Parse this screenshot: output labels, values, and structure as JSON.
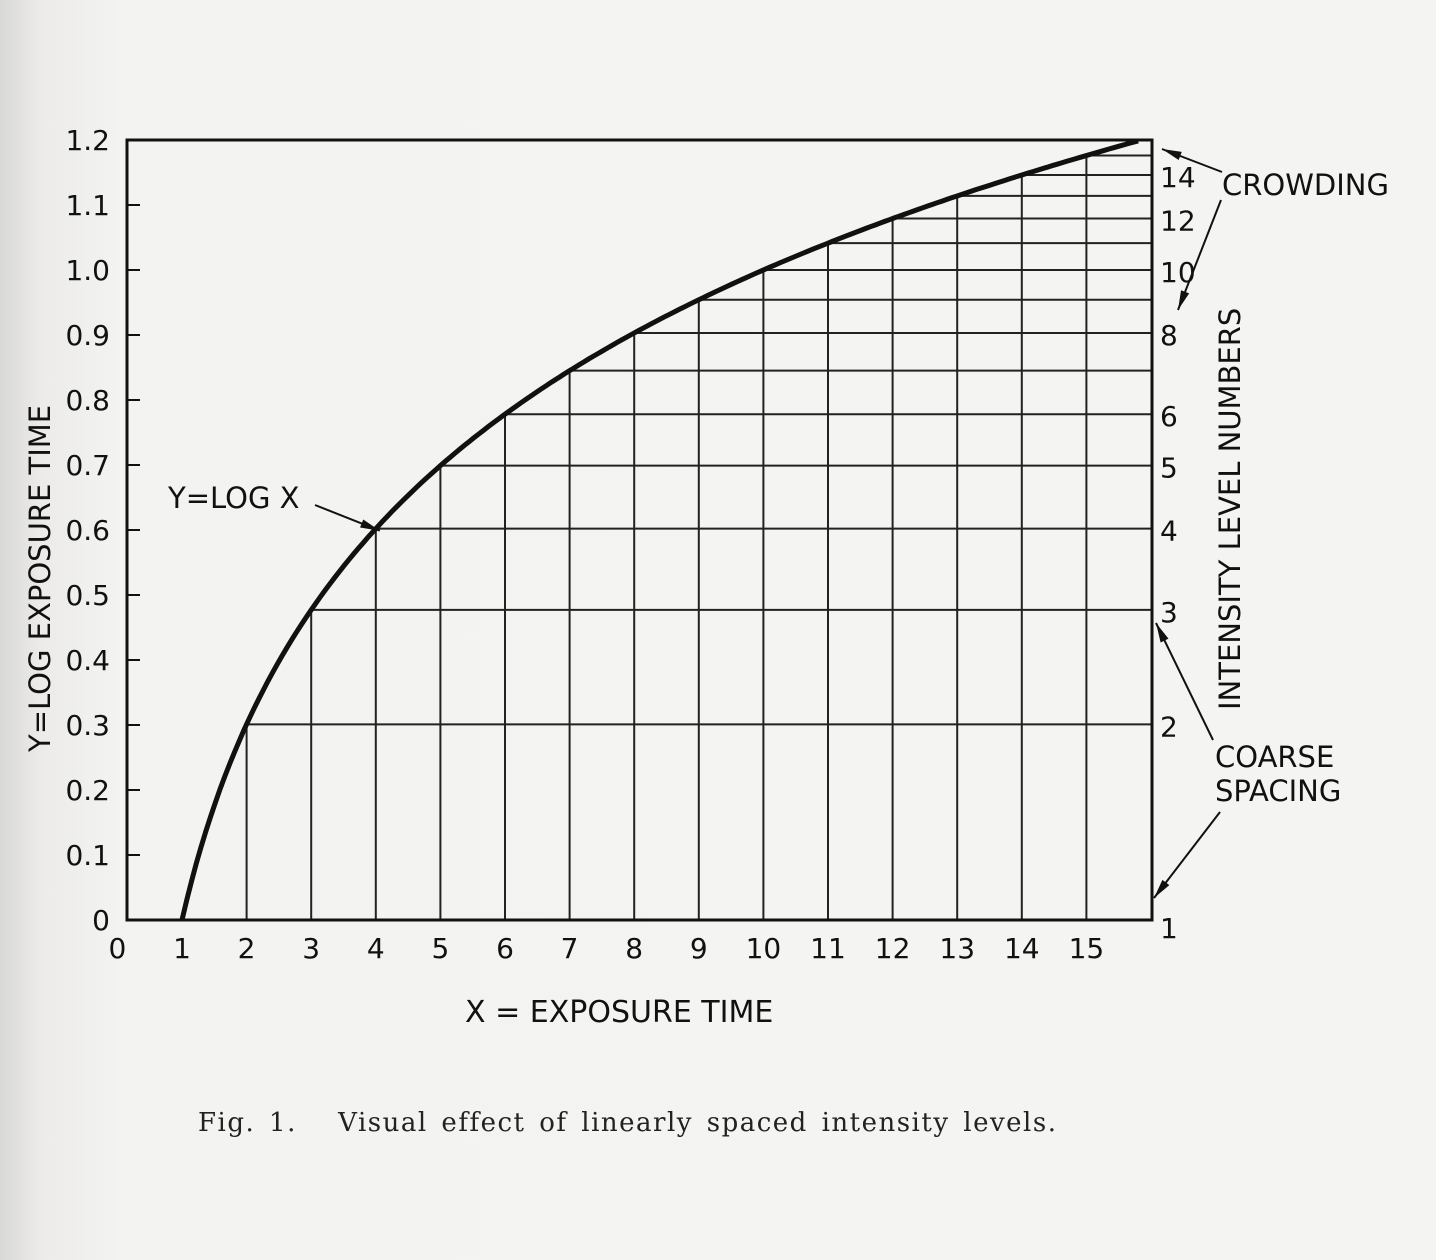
{
  "chart_data": {
    "type": "line",
    "function": "y = log10(x)",
    "xlabel": "X = EXPOSURE TIME",
    "ylabel": "Y=LOG EXPOSURE TIME",
    "y2label": "INTENSITY LEVEL NUMBERS",
    "xlim": [
      0,
      16
    ],
    "ylim": [
      0,
      1.2
    ],
    "xticks": [
      "0",
      "1",
      "2",
      "3",
      "4",
      "5",
      "6",
      "7",
      "8",
      "9",
      "10",
      "11",
      "12",
      "13",
      "14",
      "15"
    ],
    "yticks": [
      "0",
      "0.1",
      "0.2",
      "0.3",
      "0.4",
      "0.5",
      "0.6",
      "0.7",
      "0.8",
      "0.9",
      "1.0",
      "1.1",
      "1.2"
    ],
    "intensity_levels": [
      1,
      2,
      3,
      4,
      5,
      6,
      7,
      8,
      9,
      10,
      11,
      12,
      13,
      14,
      15
    ],
    "right_tick_labels": [
      "1",
      "2",
      "3",
      "4",
      "5",
      "6",
      "8",
      "10",
      "12",
      "14"
    ],
    "curve_x_range": [
      1,
      15.8
    ],
    "curve_label": "Y=LOG X",
    "curve_label_points_to": [
      4,
      0.602
    ],
    "annotations": [
      {
        "text": "CROWDING",
        "points_to_levels": [
          15,
          9
        ]
      },
      {
        "text": "COARSE SPACING",
        "lines": [
          "COARSE",
          "SPACING"
        ],
        "points_to_levels": [
          3,
          1
        ]
      }
    ],
    "grid": "vertical lines at integer x up to the curve; horizontal lines at log10(level) from the curve to the right edge",
    "colors": {
      "ink": "#111111",
      "paper": "#f4f4f2"
    }
  },
  "caption": "Fig. 1.   Visual effect of linearly spaced intensity levels."
}
